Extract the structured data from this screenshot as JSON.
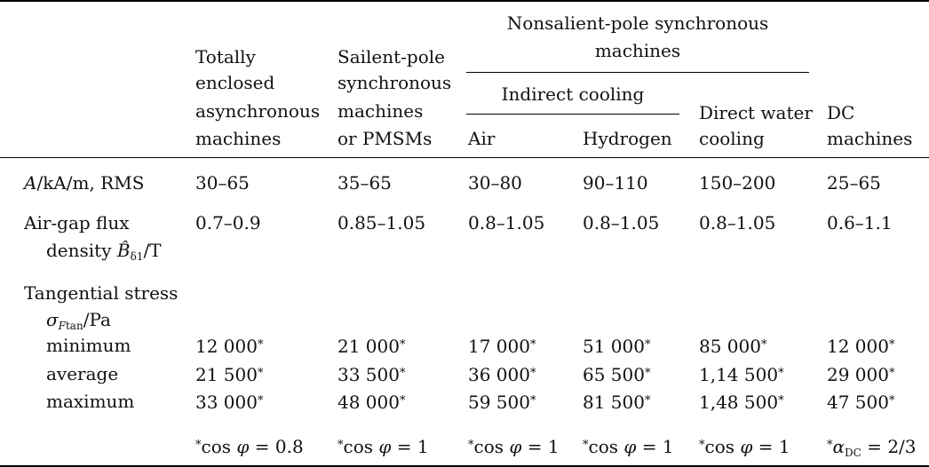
{
  "headers": {
    "async": [
      "Totally",
      "enclosed",
      "asynchronous",
      "machines"
    ],
    "salient": [
      "Sailent-pole",
      "synchronous",
      "machines",
      "or PMSMs"
    ],
    "nonsalient_group": [
      "Nonsalient-pole synchronous",
      "machines"
    ],
    "indirect_group": "Indirect cooling",
    "air": "Air",
    "hydrogen": "Hydrogen",
    "direct_water": [
      "Direct water",
      "cooling"
    ],
    "dc": [
      "DC",
      "machines"
    ]
  },
  "rows": {
    "A": {
      "label_var": "A",
      "label_rest": "/kA/m, RMS",
      "values": [
        "30–65",
        "35–65",
        "30–80",
        "90–110",
        "150–200",
        "25–65"
      ]
    },
    "B": {
      "label_line1": "Air-gap flux",
      "label_line2_pre": "density ",
      "label_sym": "B̂",
      "label_sub": "δ1",
      "label_unit": "/T",
      "values": [
        "0.7–0.9",
        "0.85–1.05",
        "0.8–1.05",
        "0.8–1.05",
        "0.8–1.05",
        "0.6–1.1"
      ]
    },
    "stress": {
      "label_line1": "Tangential stress",
      "label_sym": "σ",
      "label_sub": "F",
      "label_sub2": "tan",
      "label_unit": "/Pa"
    },
    "minimum": {
      "label": "minimum",
      "values": [
        "12 000",
        "21 000",
        "17 000",
        "51 000",
        "85 000",
        "12 000"
      ]
    },
    "average": {
      "label": "average",
      "values": [
        "21 500",
        "33 500",
        "36 000",
        "65 500",
        "1,14 500",
        "29 000"
      ]
    },
    "maximum": {
      "label": "maximum",
      "values": [
        "33 000",
        "48 000",
        "59 500",
        "81 500",
        "1,48 500",
        "47 500"
      ]
    }
  },
  "star": "*",
  "footnotes": {
    "cos_prefix": "cos ",
    "phi": "φ",
    "eq": " = ",
    "values": [
      "0.8",
      "1",
      "1",
      "1",
      "1"
    ],
    "dc_alpha": "α",
    "dc_sub": "DC",
    "dc_value": "2/3"
  }
}
